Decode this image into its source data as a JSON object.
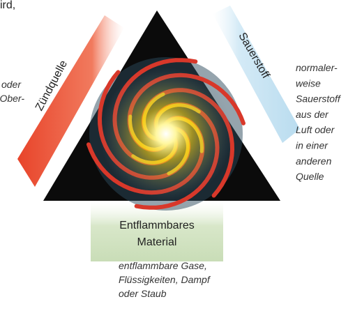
{
  "top_fragment": "ird,",
  "left_note": [
    "oder",
    "Ober-"
  ],
  "ignition": {
    "label": "Zündquelle"
  },
  "oxygen": {
    "label": "Sauerstoff",
    "note": [
      "normaler-",
      "weise",
      "Sauerstoff",
      "aus der",
      "Luft oder",
      "in einer",
      "anderen",
      "Quelle"
    ]
  },
  "fuel": {
    "label": [
      "Entflammbares",
      "Material"
    ],
    "note": [
      "entflammbare Gase,",
      "Flüssigkeiten, Dampf",
      "oder Staub"
    ]
  }
}
